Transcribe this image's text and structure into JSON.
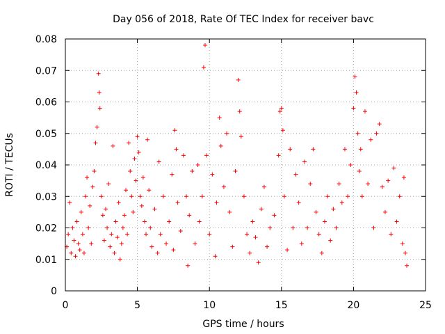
{
  "chart_data": {
    "type": "scatter",
    "title": "Day 056 of 2018, Rate Of TEC Index for receiver bavc",
    "xlabel": "GPS time / hours",
    "ylabel": "ROTI / TECUs",
    "xlim": [
      0,
      25
    ],
    "ylim": [
      0,
      0.08
    ],
    "xticks": [
      "0",
      "5",
      "10",
      "15",
      "20",
      "25"
    ],
    "yticks": [
      "0",
      "0.01",
      "0.02",
      "0.03",
      "0.04",
      "0.05",
      "0.06",
      "0.07",
      "0.08"
    ],
    "grid": true,
    "marker": "+",
    "series": [
      {
        "color": "#ff0000",
        "points": [
          [
            0.1,
            0.014
          ],
          [
            0.2,
            0.018
          ],
          [
            0.3,
            0.028
          ],
          [
            0.4,
            0.012
          ],
          [
            0.5,
            0.02
          ],
          [
            0.6,
            0.016
          ],
          [
            0.7,
            0.011
          ],
          [
            0.8,
            0.022
          ],
          [
            0.9,
            0.015
          ],
          [
            1.0,
            0.013
          ],
          [
            1.1,
            0.025
          ],
          [
            1.2,
            0.018
          ],
          [
            1.3,
            0.012
          ],
          [
            1.4,
            0.03
          ],
          [
            1.5,
            0.036
          ],
          [
            1.6,
            0.02
          ],
          [
            1.7,
            0.027
          ],
          [
            1.8,
            0.015
          ],
          [
            1.9,
            0.033
          ],
          [
            2.0,
            0.038
          ],
          [
            2.1,
            0.047
          ],
          [
            2.2,
            0.052
          ],
          [
            2.3,
            0.069
          ],
          [
            2.35,
            0.063
          ],
          [
            2.4,
            0.058
          ],
          [
            2.5,
            0.03
          ],
          [
            2.6,
            0.024
          ],
          [
            2.7,
            0.016
          ],
          [
            2.8,
            0.026
          ],
          [
            2.9,
            0.02
          ],
          [
            3.0,
            0.034
          ],
          [
            3.1,
            0.014
          ],
          [
            3.2,
            0.018
          ],
          [
            3.3,
            0.046
          ],
          [
            3.4,
            0.012
          ],
          [
            3.5,
            0.022
          ],
          [
            3.6,
            0.017
          ],
          [
            3.7,
            0.028
          ],
          [
            3.8,
            0.01
          ],
          [
            3.9,
            0.015
          ],
          [
            4.0,
            0.02
          ],
          [
            4.1,
            0.024
          ],
          [
            4.2,
            0.032
          ],
          [
            4.3,
            0.018
          ],
          [
            4.4,
            0.047
          ],
          [
            4.5,
            0.038
          ],
          [
            4.6,
            0.03
          ],
          [
            4.7,
            0.025
          ],
          [
            4.8,
            0.042
          ],
          [
            4.9,
            0.035
          ],
          [
            5.0,
            0.049
          ],
          [
            5.1,
            0.044
          ],
          [
            5.2,
            0.03
          ],
          [
            5.3,
            0.027
          ],
          [
            5.4,
            0.036
          ],
          [
            5.5,
            0.022
          ],
          [
            5.6,
            0.018
          ],
          [
            5.7,
            0.048
          ],
          [
            5.8,
            0.032
          ],
          [
            5.9,
            0.02
          ],
          [
            6.0,
            0.014
          ],
          [
            6.2,
            0.026
          ],
          [
            6.4,
            0.012
          ],
          [
            6.5,
            0.041
          ],
          [
            6.6,
            0.018
          ],
          [
            6.8,
            0.03
          ],
          [
            7.0,
            0.015
          ],
          [
            7.2,
            0.022
          ],
          [
            7.4,
            0.037
          ],
          [
            7.5,
            0.013
          ],
          [
            7.6,
            0.051
          ],
          [
            7.7,
            0.045
          ],
          [
            7.8,
            0.028
          ],
          [
            8.0,
            0.019
          ],
          [
            8.2,
            0.043
          ],
          [
            8.4,
            0.03
          ],
          [
            8.5,
            0.008
          ],
          [
            8.6,
            0.024
          ],
          [
            8.8,
            0.038
          ],
          [
            9.0,
            0.015
          ],
          [
            9.2,
            0.04
          ],
          [
            9.3,
            0.022
          ],
          [
            9.5,
            0.03
          ],
          [
            9.6,
            0.071
          ],
          [
            9.7,
            0.078
          ],
          [
            9.8,
            0.043
          ],
          [
            10.0,
            0.018
          ],
          [
            10.2,
            0.037
          ],
          [
            10.4,
            0.011
          ],
          [
            10.5,
            0.028
          ],
          [
            10.7,
            0.055
          ],
          [
            10.8,
            0.046
          ],
          [
            11.0,
            0.033
          ],
          [
            11.2,
            0.05
          ],
          [
            11.4,
            0.025
          ],
          [
            11.6,
            0.014
          ],
          [
            11.8,
            0.038
          ],
          [
            12.0,
            0.067
          ],
          [
            12.1,
            0.057
          ],
          [
            12.2,
            0.049
          ],
          [
            12.4,
            0.03
          ],
          [
            12.6,
            0.018
          ],
          [
            12.8,
            0.012
          ],
          [
            13.0,
            0.022
          ],
          [
            13.2,
            0.017
          ],
          [
            13.4,
            0.009
          ],
          [
            13.6,
            0.026
          ],
          [
            13.8,
            0.033
          ],
          [
            14.0,
            0.014
          ],
          [
            14.2,
            0.02
          ],
          [
            14.5,
            0.024
          ],
          [
            14.8,
            0.043
          ],
          [
            14.9,
            0.057
          ],
          [
            15.0,
            0.058
          ],
          [
            15.1,
            0.051
          ],
          [
            15.2,
            0.03
          ],
          [
            15.4,
            0.013
          ],
          [
            15.6,
            0.045
          ],
          [
            15.8,
            0.02
          ],
          [
            16.0,
            0.037
          ],
          [
            16.2,
            0.028
          ],
          [
            16.4,
            0.015
          ],
          [
            16.6,
            0.041
          ],
          [
            16.8,
            0.02
          ],
          [
            17.0,
            0.034
          ],
          [
            17.2,
            0.045
          ],
          [
            17.4,
            0.025
          ],
          [
            17.6,
            0.018
          ],
          [
            17.8,
            0.012
          ],
          [
            18.0,
            0.022
          ],
          [
            18.2,
            0.03
          ],
          [
            18.4,
            0.016
          ],
          [
            18.6,
            0.026
          ],
          [
            18.8,
            0.02
          ],
          [
            19.0,
            0.034
          ],
          [
            19.2,
            0.028
          ],
          [
            19.4,
            0.045
          ],
          [
            19.6,
            0.03
          ],
          [
            19.8,
            0.04
          ],
          [
            20.0,
            0.058
          ],
          [
            20.1,
            0.068
          ],
          [
            20.2,
            0.063
          ],
          [
            20.3,
            0.05
          ],
          [
            20.4,
            0.038
          ],
          [
            20.5,
            0.045
          ],
          [
            20.6,
            0.03
          ],
          [
            20.8,
            0.057
          ],
          [
            21.0,
            0.034
          ],
          [
            21.2,
            0.048
          ],
          [
            21.4,
            0.02
          ],
          [
            21.6,
            0.05
          ],
          [
            21.8,
            0.053
          ],
          [
            22.0,
            0.033
          ],
          [
            22.2,
            0.025
          ],
          [
            22.4,
            0.035
          ],
          [
            22.6,
            0.018
          ],
          [
            22.8,
            0.039
          ],
          [
            23.0,
            0.022
          ],
          [
            23.2,
            0.03
          ],
          [
            23.4,
            0.015
          ],
          [
            23.5,
            0.036
          ],
          [
            23.6,
            0.012
          ],
          [
            23.7,
            0.008
          ]
        ]
      }
    ]
  }
}
